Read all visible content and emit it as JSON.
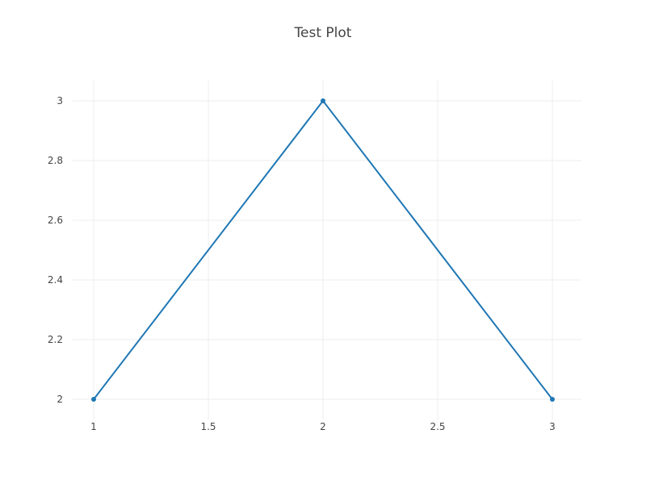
{
  "chart_data": {
    "type": "line",
    "title": "Test Plot",
    "xlabel": "",
    "ylabel": "",
    "x": [
      1,
      2,
      3
    ],
    "series": [
      {
        "values": [
          2,
          3,
          2
        ],
        "color": "#1f77b4",
        "markers": true
      }
    ],
    "xlim": [
      1,
      3
    ],
    "ylim": [
      2,
      3
    ],
    "xticks": [
      1,
      1.5,
      2,
      2.5,
      3
    ],
    "yticks": [
      2,
      2.2,
      2.4,
      2.6,
      2.8,
      3
    ],
    "xtick_labels": [
      "1",
      "1.5",
      "2",
      "2.5",
      "3"
    ],
    "ytick_labels": [
      "2",
      "2.2",
      "2.4",
      "2.6",
      "2.8",
      "3"
    ],
    "grid": true,
    "legend": "none",
    "colors": {
      "line": "#1f77b4",
      "grid": "#eeeeee",
      "text": "#444444",
      "background": "#ffffff"
    }
  }
}
